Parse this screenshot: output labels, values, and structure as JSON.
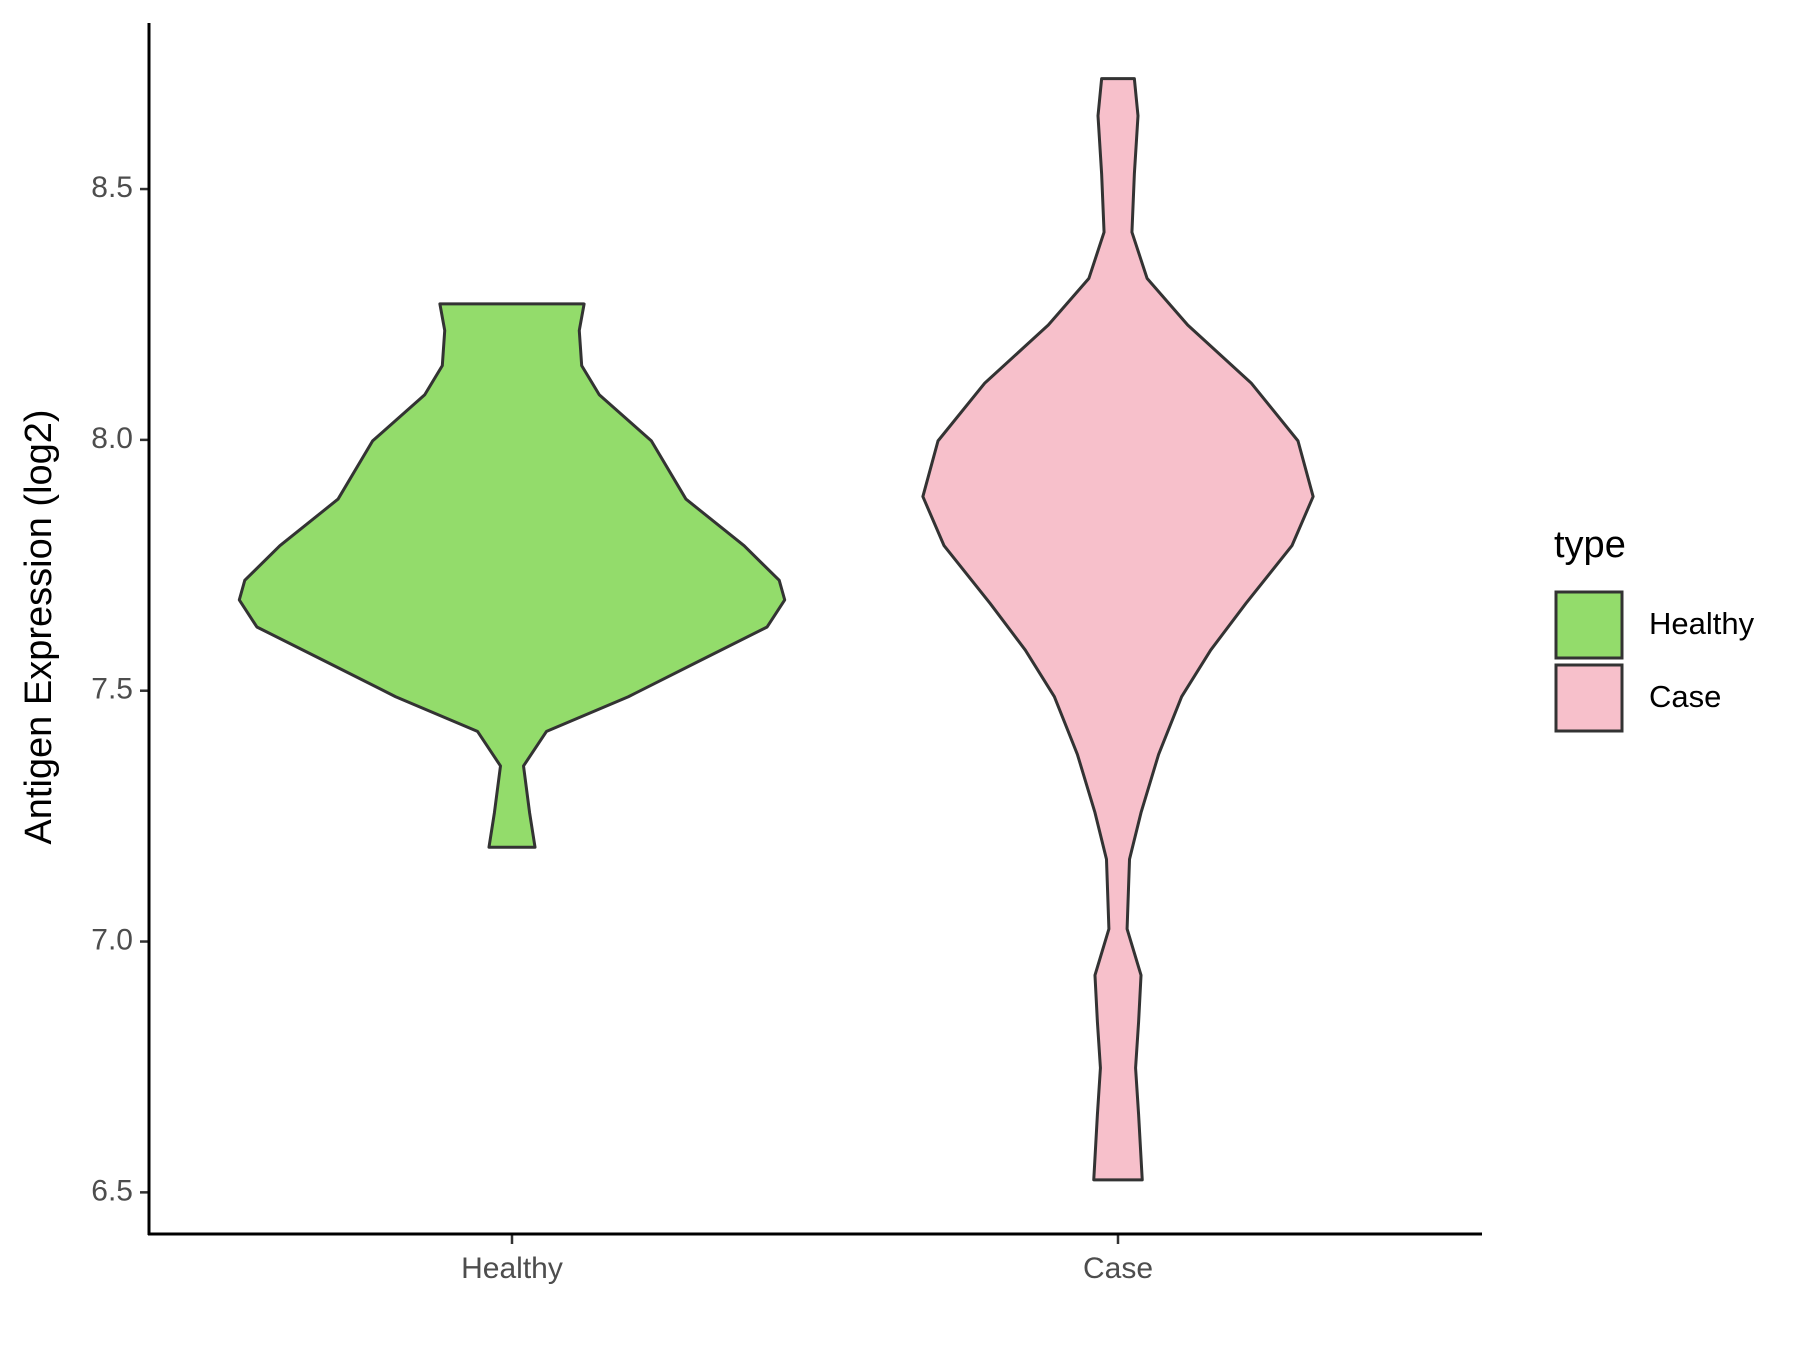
{
  "chart_data": {
    "type": "violin",
    "y_axis_label": "Antigen Expression (log2)",
    "categories": [
      "Healthy",
      "Case"
    ],
    "legend_title": "type",
    "ylim": [
      6.417,
      8.831
    ],
    "yticks": [
      6.5,
      {
        "value": 7,
        "label": "7.0"
      },
      7.5,
      {
        "value": 8,
        "label": "8.0"
      },
      8.5
    ],
    "grid": false,
    "series": [
      {
        "name": "Healthy",
        "color": "#93dc6b",
        "y": [
          8.271,
          8.218,
          8.148,
          8.09,
          7.998,
          7.882,
          7.789,
          7.72,
          7.681,
          7.627,
          7.558,
          7.488,
          7.419,
          7.35,
          7.257,
          7.188
        ],
        "half_width": [
          0.119,
          0.111,
          0.115,
          0.144,
          0.23,
          0.287,
          0.383,
          0.441,
          0.45,
          0.421,
          0.307,
          0.192,
          0.057,
          0.019,
          0.029,
          0.038
        ]
      },
      {
        "name": "Case",
        "color": "#f7c0cb",
        "y": [
          8.72,
          8.646,
          8.53,
          8.414,
          8.322,
          8.229,
          8.113,
          7.998,
          7.887,
          7.789,
          7.674,
          7.581,
          7.488,
          7.373,
          7.257,
          7.164,
          7.025,
          6.933,
          6.84,
          6.748,
          6.655,
          6.525
        ],
        "half_width": [
          0.027,
          0.033,
          0.027,
          0.023,
          0.048,
          0.115,
          0.22,
          0.297,
          0.322,
          0.287,
          0.211,
          0.153,
          0.105,
          0.067,
          0.038,
          0.019,
          0.015,
          0.038,
          0.034,
          0.029,
          0.034,
          0.04
        ]
      }
    ]
  }
}
